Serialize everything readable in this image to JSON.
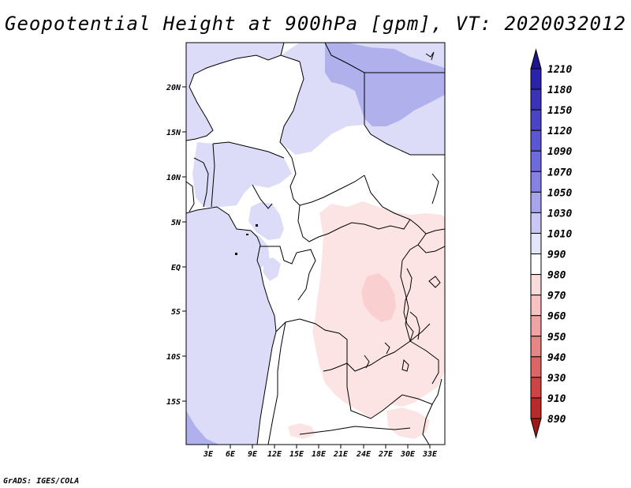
{
  "title": "Geopotential Height at 900hPa [gpm], VT: 2020032012",
  "footer": "GrADS: IGES/COLA",
  "axes": {
    "lat_labels": [
      "20N",
      "15N",
      "10N",
      "5N",
      "EQ",
      "5S",
      "10S",
      "15S"
    ],
    "lon_labels": [
      "3E",
      "6E",
      "9E",
      "12E",
      "15E",
      "18E",
      "21E",
      "24E",
      "27E",
      "30E",
      "33E"
    ]
  },
  "colorbar": {
    "levels": [
      "1210",
      "1180",
      "1150",
      "1120",
      "1090",
      "1070",
      "1050",
      "1030",
      "1010",
      "990",
      "980",
      "970",
      "960",
      "950",
      "940",
      "930",
      "910",
      "890"
    ],
    "colors": [
      "#1f1490",
      "#2a22a8",
      "#3a33b8",
      "#4a45c6",
      "#5b57d2",
      "#6e6bdc",
      "#8582e4",
      "#a6a4ec",
      "#c9c8f4",
      "#e4e4fa",
      "#ffffff",
      "#fbdcdc",
      "#f6c2c2",
      "#eea4a4",
      "#e68686",
      "#dc6666",
      "#cc4444",
      "#b82a2a",
      "#9e1a1a"
    ]
  },
  "map_colors": {
    "light_blue": "#dcdcf8",
    "medium_blue": "#c4c4f2",
    "dark_blue": "#b0b0ec",
    "light_pink": "#fde4e4",
    "medium_pink": "#f9cfcf",
    "white": "#ffffff"
  }
}
